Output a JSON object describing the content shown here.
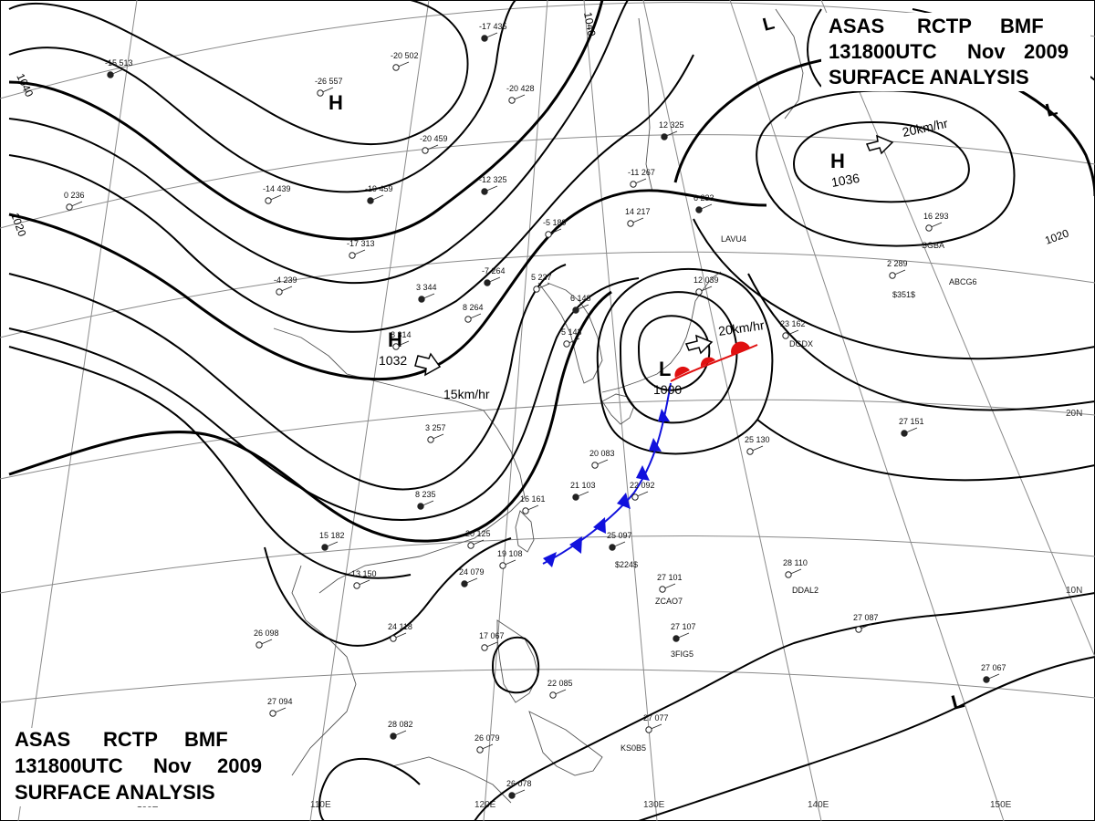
{
  "header": {
    "line1": [
      "ASAS",
      "RCTP",
      "BMF"
    ],
    "line2": [
      "131800UTC",
      "Nov",
      "2009"
    ],
    "line3": "SURFACE ANALYSIS"
  },
  "footer": {
    "line1": [
      "ASAS",
      "RCTP",
      "BMF"
    ],
    "line2": [
      "131800UTC",
      "Nov",
      "2009"
    ],
    "line3": "SURFACE ANALYSIS"
  },
  "grid_labels": {
    "lon": [
      "100E",
      "110E",
      "120E",
      "130E",
      "140E",
      "150E"
    ],
    "lat": [
      "20N",
      "10N"
    ]
  },
  "isobar_labels": [
    "1040",
    "1040",
    "1020",
    "1020"
  ],
  "pressure_centers": [
    {
      "type": "H",
      "value": "1032",
      "motion": "15km/hr",
      "color": "#1a33cc"
    },
    {
      "type": "H",
      "value": "1036",
      "motion": "20km/hr",
      "color": "#1a33cc"
    },
    {
      "type": "L",
      "value": "1000",
      "motion": "20km/hr",
      "color": "#e01010"
    },
    {
      "type": "H",
      "value": "",
      "motion": "",
      "color": "#1a33cc"
    },
    {
      "type": "L",
      "value": "",
      "motion": "",
      "color": "#e01010"
    },
    {
      "type": "L",
      "value": "",
      "motion": "",
      "color": "#e01010"
    },
    {
      "type": "L",
      "value": "",
      "motion": "",
      "color": "#e01010"
    }
  ],
  "fronts": [
    {
      "type": "cold",
      "color": "#1111dd"
    },
    {
      "type": "warm",
      "color": "#e01010"
    }
  ],
  "station_reports": [
    "-15 513",
    "-26 557",
    "-20 502",
    "-17 435",
    "-20 428",
    "-20 459",
    "-19 459",
    "-14 439",
    "-17 313",
    "-12 325",
    "-11 267",
    "-5 189",
    "-7 264",
    "5 237",
    "8 264",
    "6 148",
    "5 143",
    "8 314",
    "3 344",
    "-4 239",
    "0 236",
    "8 235",
    "3 257",
    "16 161",
    "21 103",
    "20 083",
    "22 092",
    "25 097",
    "24 118",
    "27 101",
    "27 107",
    "28 110",
    "27 087",
    "27 067",
    "26 098",
    "17 067",
    "28 082",
    "26 079",
    "27 094",
    "26 078",
    "27 077",
    "23 162",
    "27 151",
    "25 130",
    "13 150",
    "15 182",
    "20 125",
    "19 108",
    "12 325",
    "16 293",
    "2 289",
    "6 233",
    "14 217",
    "12 039",
    "24 079",
    "22 085"
  ],
  "ship_ids": [
    "$351$",
    "ABCG6",
    "SGBA",
    "LAVU4",
    "DGDX",
    "ZCAO7",
    "3FIG5",
    "DDAL2",
    "KS0B5",
    "$224$"
  ],
  "colors": {
    "isobar": "#000000",
    "grid": "#8a8a8a",
    "coast": "#555555",
    "high": "#1a33cc",
    "low": "#e01010"
  }
}
